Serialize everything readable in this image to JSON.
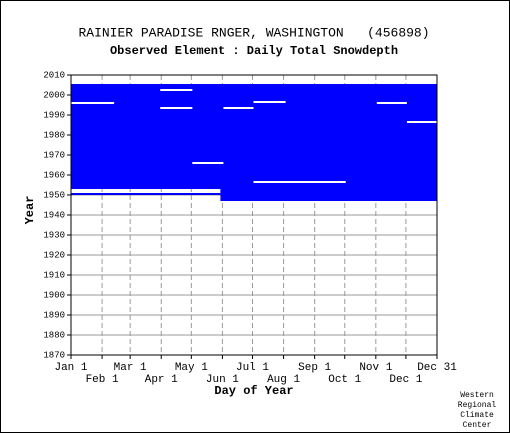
{
  "chart_data": {
    "type": "coverage",
    "title": "RAINIER PARADISE RNGER, WASHINGTON   (456898)",
    "subtitle": "Observed Element : Daily Total Snowdepth",
    "x_label": "Day of Year",
    "y_label": "Year",
    "note": [
      "Western",
      "Regional",
      "Climate",
      "Center"
    ],
    "color": "#0000ff",
    "grid": true,
    "xlim": [
      1,
      366
    ],
    "ylim": [
      1870,
      2010
    ],
    "xticks": [
      {
        "value": 1,
        "label": "Jan 1"
      },
      {
        "value": 32,
        "label": "Feb 1"
      },
      {
        "value": 60,
        "label": "Mar 1"
      },
      {
        "value": 91,
        "label": "Apr 1"
      },
      {
        "value": 121,
        "label": "May 1"
      },
      {
        "value": 152,
        "label": "Jun 1"
      },
      {
        "value": 182,
        "label": "Jul 1"
      },
      {
        "value": 213,
        "label": "Aug 1"
      },
      {
        "value": 244,
        "label": "Sep 1"
      },
      {
        "value": 274,
        "label": "Oct 1"
      },
      {
        "value": 305,
        "label": "Nov 1"
      },
      {
        "value": 335,
        "label": "Dec 1"
      },
      {
        "value": 366,
        "label": "Dec 31"
      }
    ],
    "yticks": [
      1870,
      1880,
      1890,
      1900,
      1910,
      1920,
      1930,
      1940,
      1950,
      1960,
      1970,
      1980,
      1990,
      2000,
      2010
    ],
    "ranges": [
      {
        "days": [
          1,
          366
        ],
        "years": [
          1953,
          2005.5
        ]
      },
      {
        "days": [
          1,
          150
        ],
        "years": [
          1950,
          1951
        ]
      },
      {
        "days": [
          150,
          366
        ],
        "years": [
          1947,
          1953
        ]
      }
    ],
    "gaps": [
      {
        "days": [
          1,
          44
        ],
        "years": [
          1995.5,
          1996.5
        ]
      },
      {
        "days": [
          90,
          122
        ],
        "years": [
          2002,
          2003
        ]
      },
      {
        "days": [
          90,
          122
        ],
        "years": [
          1993,
          1994
        ]
      },
      {
        "days": [
          153,
          183
        ],
        "years": [
          1993,
          1994
        ]
      },
      {
        "days": [
          183,
          215
        ],
        "years": [
          1996,
          1997
        ]
      },
      {
        "days": [
          122,
          153
        ],
        "years": [
          1965.5,
          1966.5
        ]
      },
      {
        "days": [
          183,
          275
        ],
        "years": [
          1956,
          1957
        ]
      },
      {
        "days": [
          336,
          366
        ],
        "years": [
          1986,
          1987
        ]
      },
      {
        "days": [
          306,
          336
        ],
        "years": [
          1995.5,
          1996.5
        ]
      }
    ]
  }
}
